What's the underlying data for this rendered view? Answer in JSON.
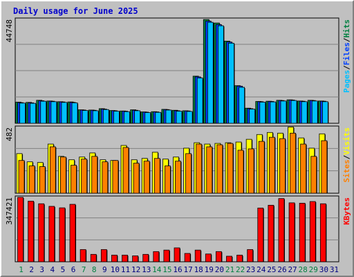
{
  "chart_data": {
    "type": "bar",
    "title": "Daily usage for June 2025",
    "colors": {
      "background": "#c0c0c0",
      "title": "#0000cc",
      "pages": "#00c0ff",
      "files": "#0040ff",
      "hits": "#008040",
      "sites": "#ff8000",
      "visits": "#ffff00",
      "kbytes": "#ff0000",
      "weekday_label": "#000080",
      "weekend_label": "#008040"
    },
    "weekends": [
      1,
      7,
      8,
      14,
      15,
      21,
      22,
      28,
      29
    ],
    "categories": [
      "1",
      "2",
      "3",
      "4",
      "5",
      "6",
      "7",
      "8",
      "9",
      "10",
      "11",
      "12",
      "13",
      "14",
      "15",
      "16",
      "17",
      "18",
      "19",
      "20",
      "21",
      "22",
      "23",
      "24",
      "25",
      "26",
      "27",
      "28",
      "29",
      "30",
      "31"
    ],
    "panels": [
      {
        "id": "hits-panel",
        "max_label": "44748",
        "ylim": [
          0,
          44748
        ],
        "legend": [
          {
            "text": "Pages",
            "color": "#00c0ff"
          },
          {
            "text": "/",
            "color": "#000000"
          },
          {
            "text": "Files",
            "color": "#0040ff"
          },
          {
            "text": "/",
            "color": "#000000"
          },
          {
            "text": "Hits",
            "color": "#008040"
          }
        ],
        "series": [
          {
            "name": "Hits",
            "color": "#008040",
            "values": [
              9100,
              9000,
              9900,
              9600,
              9300,
              9200,
              5800,
              5700,
              6300,
              5500,
              5300,
              5800,
              4900,
              5000,
              6000,
              5600,
              5400,
              20300,
              44700,
              43200,
              35400,
              16200,
              6500,
              9400,
              9500,
              9900,
              10100,
              9600,
              9900,
              9600,
              0
            ]
          },
          {
            "name": "Files",
            "color": "#0040ff",
            "values": [
              8900,
              8800,
              9700,
              9500,
              9200,
              9000,
              5700,
              5600,
              6100,
              5400,
              5200,
              5600,
              4800,
              4900,
              5900,
              5400,
              5300,
              20000,
              44000,
              42500,
              35000,
              16000,
              6300,
              9300,
              9400,
              9800,
              10000,
              9500,
              9800,
              9500,
              0
            ]
          },
          {
            "name": "Pages",
            "color": "#00c0ff",
            "values": [
              8700,
              8600,
              9500,
              9300,
              9000,
              8800,
              5500,
              5400,
              5900,
              5200,
              5000,
              5400,
              4600,
              4700,
              5700,
              5200,
              5100,
              19500,
              43500,
              42000,
              34500,
              15500,
              6100,
              9100,
              9200,
              9600,
              9800,
              9300,
              9600,
              9300,
              0
            ]
          }
        ]
      },
      {
        "id": "visits-panel",
        "max_label": "482",
        "ylim": [
          0,
          482
        ],
        "legend": [
          {
            "text": "Sites",
            "color": "#ff8000"
          },
          {
            "text": "/",
            "color": "#000000"
          },
          {
            "text": "Visits",
            "color": "#ffff00"
          }
        ],
        "series": [
          {
            "name": "Visits",
            "color": "#ffff00",
            "values": [
              290,
              230,
              225,
              360,
              270,
              245,
              265,
              295,
              245,
              240,
              350,
              245,
              255,
              300,
              250,
              265,
              330,
              370,
              360,
              365,
              370,
              375,
              395,
              430,
              445,
              440,
              485,
              405,
              330,
              435,
              0
            ]
          },
          {
            "name": "Sites",
            "color": "#ff8000",
            "values": [
              240,
              200,
              195,
              340,
              265,
              205,
              250,
              270,
              230,
              240,
              335,
              220,
              235,
              255,
              200,
              235,
              290,
              360,
              340,
              355,
              365,
              315,
              325,
              380,
              410,
              400,
              440,
              360,
              270,
              385,
              0
            ]
          }
        ]
      },
      {
        "id": "kbytes-panel",
        "max_label": "347421",
        "ylim": [
          0,
          347421
        ],
        "legend": [
          {
            "text": "KBytes",
            "color": "#ff0000"
          }
        ],
        "series": [
          {
            "name": "KBytes",
            "color": "#ff0000",
            "values": [
              347421,
              327000,
              313000,
              299000,
              291000,
              310000,
              66000,
              40000,
              66000,
              36000,
              36000,
              32000,
              40000,
              55000,
              63000,
              75000,
              45000,
              63000,
              42000,
              55000,
              30000,
              36000,
              66000,
              290000,
              305000,
              341000,
              318000,
              316000,
              325000,
              313000,
              0
            ]
          }
        ]
      }
    ]
  }
}
